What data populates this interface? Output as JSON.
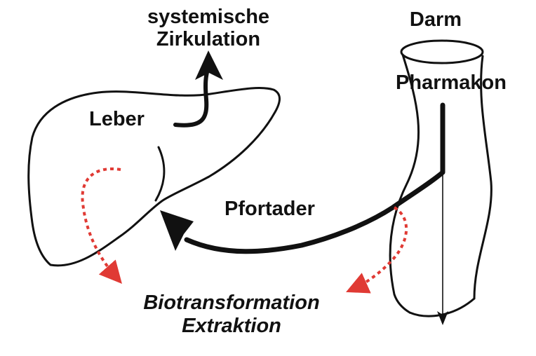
{
  "labels": {
    "systemic_line1": "systemische",
    "systemic_line2": "Zirkulation",
    "darm": "Darm",
    "pharmakon": "Pharmakon",
    "leber": "Leber",
    "pfortader": "Pfortader",
    "bio_line1": "Biotransformation",
    "bio_line2": "Extraktion"
  },
  "colors": {
    "stroke": "#111111",
    "dotted_arrow": "#e03a34",
    "background": "#ffffff"
  }
}
